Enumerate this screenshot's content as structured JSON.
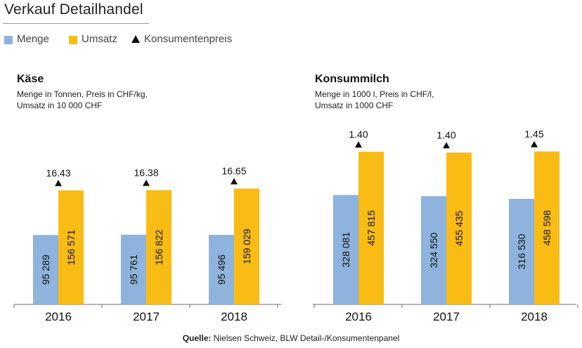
{
  "header": {
    "title": "Verkauf Detailhandel"
  },
  "legend": [
    {
      "label": "Menge",
      "color": "#8eb3dc",
      "shape": "square"
    },
    {
      "label": "Umsatz",
      "color": "#f9bc14",
      "shape": "square"
    },
    {
      "label": "Konsumentenpreis",
      "color": "#111111",
      "shape": "triangle"
    }
  ],
  "source": {
    "prefix": "Quelle:",
    "text": "Nielsen Schweiz, BLW Detail-/Konsumentenpanel"
  },
  "chart_data": [
    {
      "type": "bar",
      "title": "Käse",
      "subtitle_lines": [
        "Menge in Tonnen, Preis in CHF/kg,",
        "Umsatz in 10 000 CHF"
      ],
      "categories": [
        "2016",
        "2017",
        "2018"
      ],
      "series": [
        {
          "name": "Menge",
          "values": [
            95289,
            95761,
            95496
          ],
          "labels": [
            "95 289",
            "95 761",
            "95 496"
          ],
          "color": "#8eb3dc"
        },
        {
          "name": "Umsatz",
          "values": [
            156571,
            156822,
            159029
          ],
          "labels": [
            "156 571",
            "156 822",
            "159 029"
          ],
          "color": "#f9bc14"
        }
      ],
      "price": {
        "name": "Konsumentenpreis",
        "values": [
          16.43,
          16.38,
          16.65
        ],
        "labels": [
          "16.43",
          "16.38",
          "16.65"
        ]
      },
      "ylim": [
        0,
        250000
      ],
      "grid": false
    },
    {
      "type": "bar",
      "title": "Konsummilch",
      "subtitle_lines": [
        "Menge in 1000 l, Preis in CHF/l,",
        "Umsatz in 1000 CHF"
      ],
      "categories": [
        "2016",
        "2017",
        "2018"
      ],
      "series": [
        {
          "name": "Menge",
          "values": [
            328081,
            324550,
            316530
          ],
          "labels": [
            "328 081",
            "324 550",
            "316 530"
          ],
          "color": "#8eb3dc"
        },
        {
          "name": "Umsatz",
          "values": [
            457815,
            455435,
            458598
          ],
          "labels": [
            "457 815",
            "455 435",
            "458 598"
          ],
          "color": "#f9bc14"
        }
      ],
      "price": {
        "name": "Konsumentenpreis",
        "values": [
          1.4,
          1.4,
          1.45
        ],
        "labels": [
          "1.40",
          "1.40",
          "1.45"
        ]
      },
      "ylim": [
        0,
        546000
      ],
      "grid": false
    }
  ]
}
